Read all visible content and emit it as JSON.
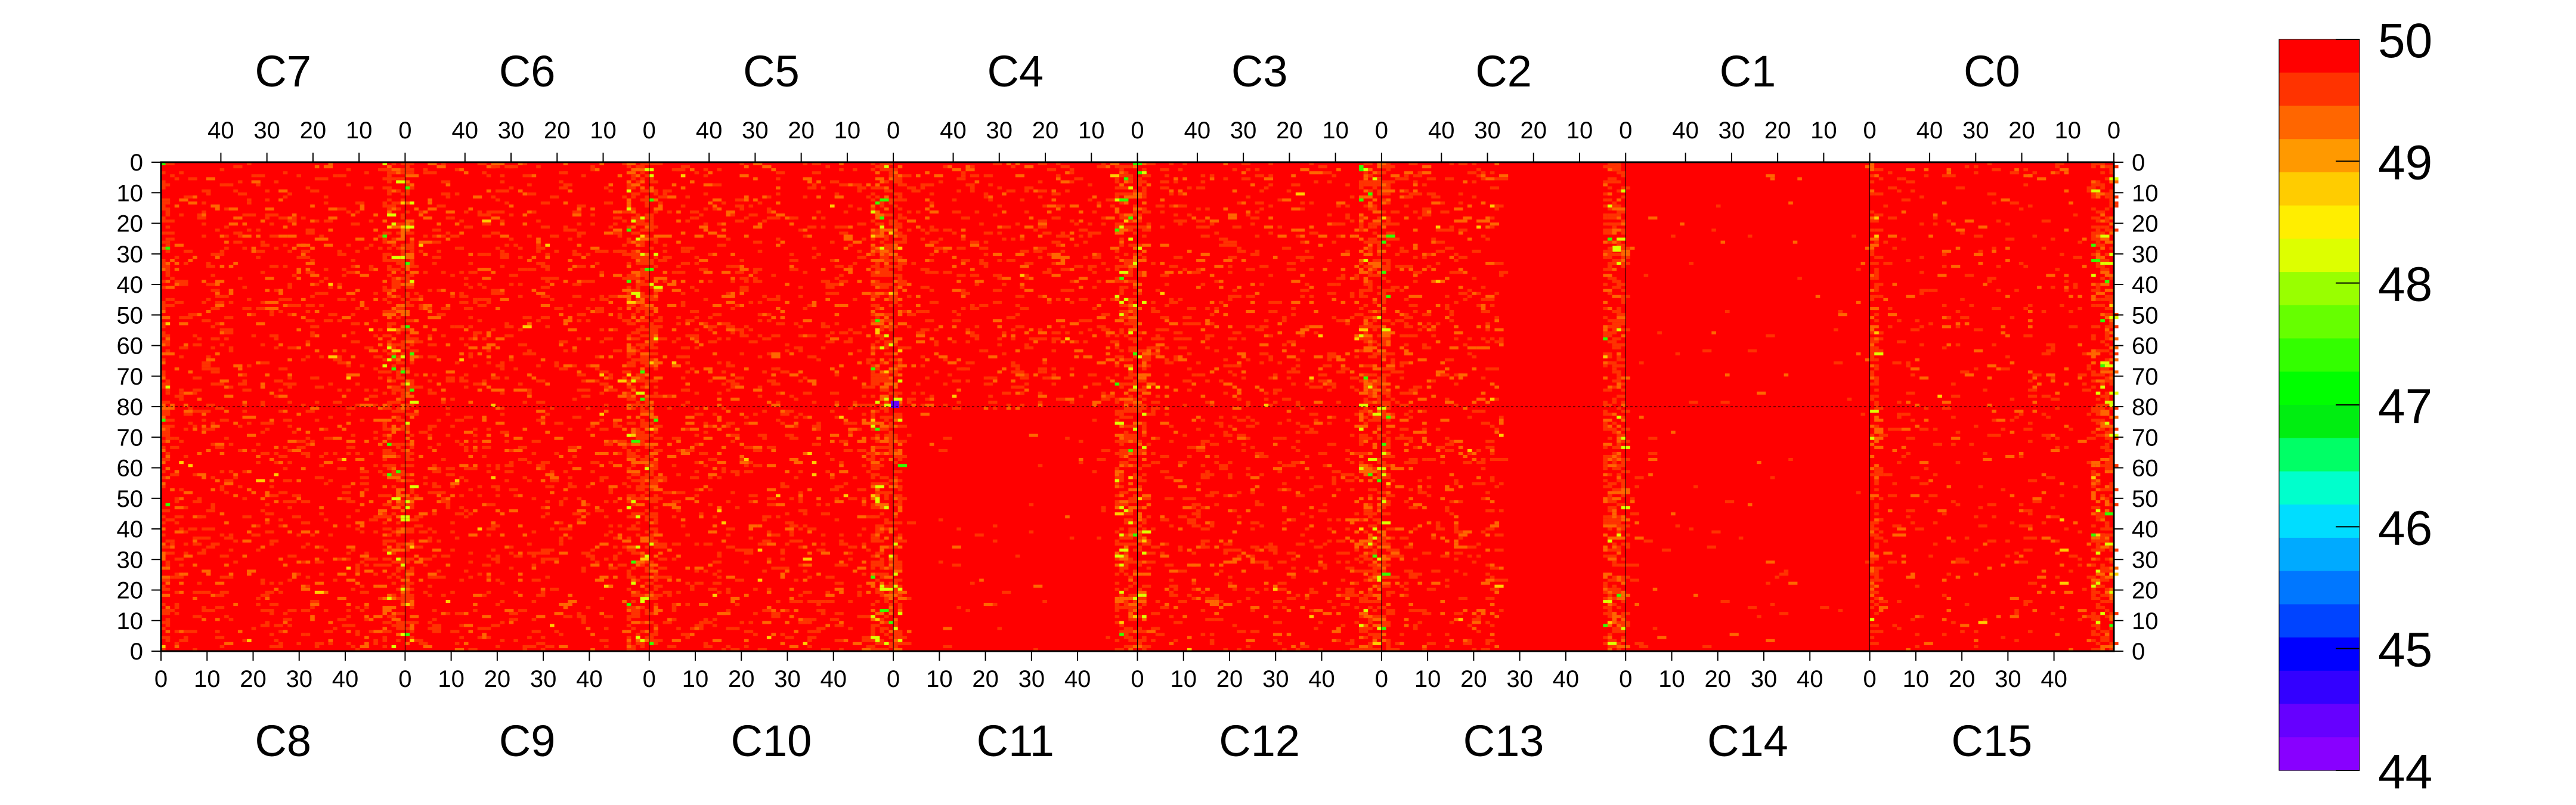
{
  "chart_data": {
    "type": "heatmap",
    "title": "",
    "xlabel": "",
    "ylabel": "",
    "top_panels": [
      "C7",
      "C6",
      "C5",
      "C4",
      "C3",
      "C2",
      "C1",
      "C0"
    ],
    "bottom_panels": [
      "C8",
      "C9",
      "C10",
      "C11",
      "C12",
      "C13",
      "C14",
      "C15"
    ],
    "top_x_ticks": [
      "40",
      "30",
      "20",
      "10",
      "0"
    ],
    "bottom_x_ticks": [
      "0",
      "10",
      "20",
      "30",
      "40"
    ],
    "y_ticks_top_half": [
      "0",
      "10",
      "20",
      "30",
      "40",
      "50",
      "60",
      "70",
      "80"
    ],
    "y_ticks_bottom_half": [
      "70",
      "60",
      "50",
      "40",
      "30",
      "20",
      "10",
      "0"
    ],
    "x_range_per_panel": [
      0,
      53
    ],
    "y_range_per_half": [
      0,
      80
    ],
    "zlim": [
      44,
      50
    ],
    "colorbar_ticks": [
      "50",
      "49",
      "48",
      "47",
      "46",
      "45",
      "44"
    ],
    "colorbar_colors": [
      "#ff0000",
      "#ff3300",
      "#ff6600",
      "#ff9900",
      "#ffcc00",
      "#ffee00",
      "#ddff00",
      "#99ff00",
      "#66ff00",
      "#33ff00",
      "#00ff00",
      "#00ee11",
      "#00ff66",
      "#00ffcc",
      "#00ddff",
      "#00aaff",
      "#0077ff",
      "#0044ff",
      "#0000ff",
      "#3300ff",
      "#6600ff",
      "#8800ff"
    ],
    "background_value": 50,
    "dominant_color": "#ff0000",
    "typical_values": [
      50,
      49.5,
      49
    ],
    "column_stripe_value": 49.5
  }
}
